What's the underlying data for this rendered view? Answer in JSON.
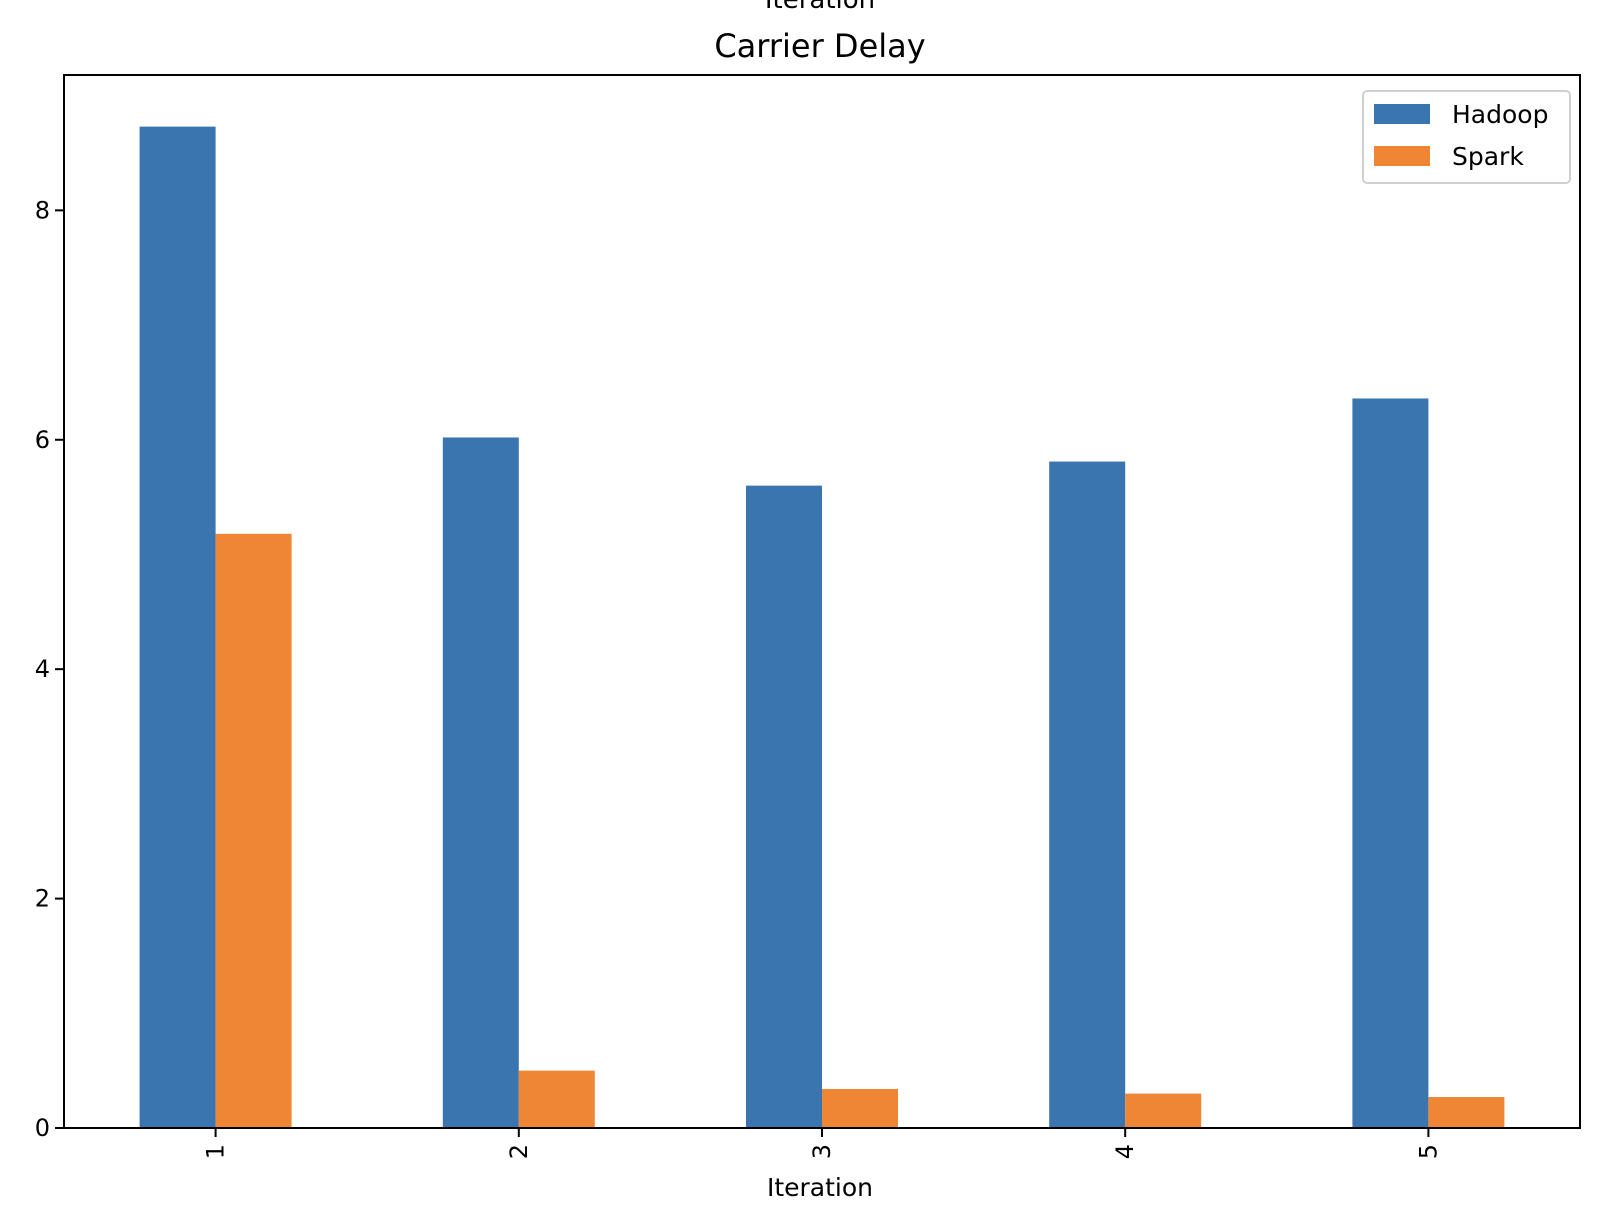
{
  "top_cut_text": "Iteration",
  "chart_data": {
    "type": "bar",
    "title": "Carrier Delay",
    "xlabel": "Iteration",
    "ylabel": "",
    "categories": [
      "1",
      "2",
      "3",
      "4",
      "5"
    ],
    "series": [
      {
        "name": "Hadoop",
        "color": "#3b75af",
        "values": [
          8.73,
          6.02,
          5.6,
          5.81,
          6.36
        ]
      },
      {
        "name": "Spark",
        "color": "#ef8636",
        "values": [
          5.18,
          0.5,
          0.34,
          0.3,
          0.27
        ]
      }
    ],
    "ylim": [
      0,
      9.18
    ],
    "y_ticks": [
      0,
      2,
      4,
      6,
      8
    ],
    "y_tick_labels": [
      "0",
      "2",
      "4",
      "6",
      "8"
    ],
    "x_tick_rotation": 90,
    "legend_position": "top-right",
    "grid": false
  }
}
